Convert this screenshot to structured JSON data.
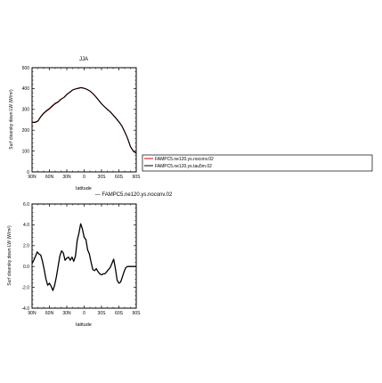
{
  "chart_data": [
    {
      "type": "line",
      "title": "JJA",
      "xlabel": "latitude",
      "ylabel": "Surf clearsky down LW (W/m²)",
      "xlim": [
        -90,
        90
      ],
      "ylim": [
        0,
        500
      ],
      "xticks": [
        -90,
        -60,
        -30,
        0,
        30,
        60,
        90
      ],
      "xtick_labels": [
        "90N",
        "60N",
        "30N",
        "0",
        "30S",
        "60S",
        "90S"
      ],
      "yticks": [
        0,
        100,
        200,
        300,
        400,
        500
      ],
      "ytick_labels": [
        "0",
        "100",
        "200",
        "300",
        "400",
        "500"
      ],
      "legend_position": "right",
      "series": [
        {
          "name": "FAMPC5.ne120.ys.noconv.02",
          "color": "#cc0000",
          "x": [
            -90,
            -85,
            -80,
            -75,
            -70,
            -65,
            -60,
            -55,
            -50,
            -45,
            -40,
            -35,
            -30,
            -25,
            -20,
            -15,
            -10,
            -5,
            0,
            5,
            10,
            15,
            20,
            25,
            30,
            35,
            40,
            45,
            50,
            55,
            60,
            65,
            70,
            75,
            80,
            85,
            90
          ],
          "y": [
            238,
            237,
            243,
            264,
            280,
            292,
            302,
            315,
            327,
            335,
            348,
            357,
            371,
            381,
            393,
            398,
            402,
            405,
            401,
            396,
            388,
            376,
            361,
            344,
            327,
            313,
            301,
            289,
            274,
            258,
            241,
            222,
            194,
            162,
            122,
            100,
            90
          ]
        },
        {
          "name": "FAMPC5.ne120.ys.tau5m.02",
          "color": "#000000",
          "x": [
            -90,
            -85,
            -80,
            -75,
            -70,
            -65,
            -60,
            -55,
            -50,
            -45,
            -40,
            -35,
            -30,
            -25,
            -20,
            -15,
            -10,
            -5,
            0,
            5,
            10,
            15,
            20,
            25,
            30,
            35,
            40,
            45,
            50,
            55,
            60,
            65,
            70,
            75,
            80,
            85,
            90
          ],
          "y": [
            238,
            238,
            244,
            265,
            282,
            294,
            304,
            317,
            329,
            336,
            349,
            357,
            372,
            382,
            393,
            398,
            401,
            404,
            401,
            396,
            388,
            376,
            361,
            344,
            327,
            313,
            300,
            288,
            273,
            257,
            240,
            221,
            193,
            161,
            121,
            99,
            89
          ]
        }
      ]
    },
    {
      "type": "line",
      "title": "— FAMPC5.ne120.ys.noconv.02",
      "xlabel": "latitude",
      "ylabel": "Surf clearsky down LW (W/m²)",
      "xlim": [
        -90,
        90
      ],
      "ylim": [
        -4,
        6
      ],
      "xticks": [
        -90,
        -60,
        -30,
        0,
        30,
        60,
        90
      ],
      "xtick_labels": [
        "90N",
        "60N",
        "30N",
        "0",
        "30S",
        "60S",
        "90S"
      ],
      "yticks": [
        -4,
        -2,
        0,
        2,
        4,
        6
      ],
      "ytick_labels": [
        "-4.0",
        "-2.0",
        "0.0",
        "2.0",
        "4.0",
        "6.0"
      ],
      "series": [
        {
          "color": "#000000",
          "x": [
            -90,
            -87,
            -84,
            -81,
            -78,
            -75,
            -72,
            -69,
            -66,
            -63,
            -60,
            -57,
            -54,
            -51,
            -48,
            -45,
            -42,
            -39,
            -36,
            -33,
            -30,
            -27,
            -24,
            -21,
            -18,
            -15,
            -12,
            -9,
            -6,
            -3,
            0,
            3,
            6,
            9,
            12,
            15,
            18,
            21,
            24,
            27,
            30,
            33,
            36,
            39,
            42,
            45,
            48,
            51,
            54,
            57,
            60,
            63,
            66,
            69,
            72,
            75,
            78,
            81,
            84,
            87,
            90
          ],
          "y": [
            0.3,
            0.6,
            1.0,
            1.4,
            1.2,
            1.1,
            0.5,
            -0.3,
            -1.2,
            -1.8,
            -1.6,
            -1.9,
            -2.3,
            -1.8,
            -1.0,
            0.0,
            1.0,
            1.5,
            1.3,
            0.6,
            0.8,
            0.9,
            0.6,
            0.9,
            0.5,
            1.0,
            2.5,
            3.2,
            4.1,
            3.6,
            2.8,
            2.6,
            1.6,
            1.2,
            0.4,
            -0.3,
            -0.4,
            -0.2,
            -0.5,
            -0.7,
            -0.8,
            -0.7,
            -0.7,
            -0.5,
            -0.3,
            -0.1,
            0.3,
            0.7,
            -0.2,
            -1.3,
            -1.6,
            -1.5,
            -1.0,
            -0.5,
            -0.1,
            0.0,
            0.0,
            0.0,
            0.0,
            0.0,
            0.0
          ]
        }
      ]
    }
  ]
}
